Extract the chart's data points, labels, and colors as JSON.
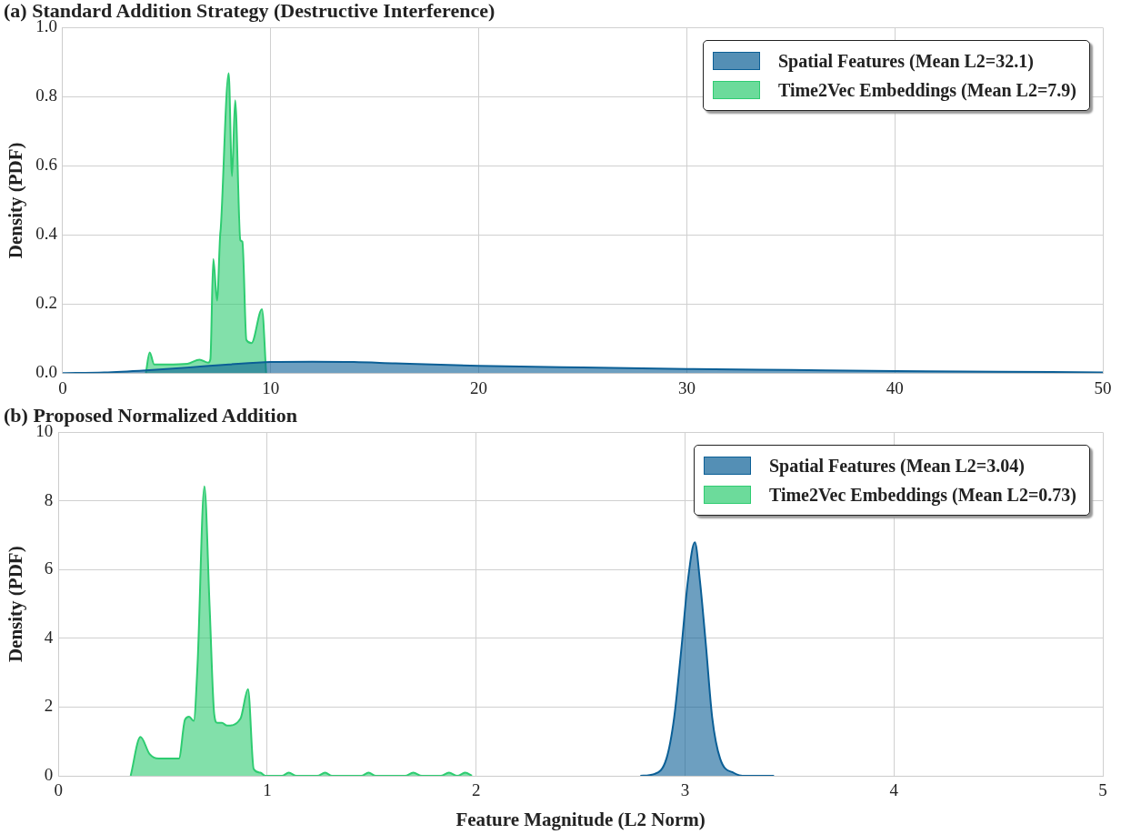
{
  "chart_data": [
    {
      "type": "area",
      "title": "(a) Standard Addition Strategy (Destructive Interference)",
      "ylabel": "Density (PDF)",
      "xlim": [
        0,
        50
      ],
      "xticks": [
        0,
        10,
        20,
        30,
        40,
        50
      ],
      "ylim": [
        0,
        1
      ],
      "yticks": [
        {
          "value": 0,
          "label": "0.0"
        },
        0.2,
        0.4,
        0.6,
        0.8,
        {
          "value": 1,
          "label": "1.0"
        }
      ],
      "grid": true,
      "legend": "top right",
      "series": [
        {
          "name": "Spatial Features (Mean L2=32.1)",
          "color": "#0b5f96",
          "x": [
            0,
            2,
            4,
            6,
            8,
            10,
            12,
            14,
            16,
            20,
            25,
            30,
            35,
            40,
            45,
            50
          ],
          "values": [
            0,
            0.002,
            0.008,
            0.016,
            0.025,
            0.032,
            0.033,
            0.032,
            0.028,
            0.021,
            0.016,
            0.012,
            0.009,
            0.006,
            0.004,
            0.002
          ]
        },
        {
          "name": "Time2Vec Embeddings (Mean L2=7.9)",
          "color": "#2ecc71",
          "x": [
            4.0,
            4.18,
            4.4,
            5.0,
            6.0,
            6.58,
            7.0,
            7.1,
            7.24,
            7.42,
            7.57,
            7.6,
            7.98,
            8.14,
            8.29,
            8.54,
            8.64,
            8.83,
            9.08,
            9.58,
            9.78
          ],
          "values": [
            0,
            0.06,
            0.025,
            0.025,
            0.027,
            0.039,
            0.03,
            0.04,
            0.33,
            0.21,
            0.4,
            0.42,
            0.868,
            0.57,
            0.79,
            0.385,
            0.38,
            0.096,
            0.087,
            0.185,
            0
          ]
        }
      ]
    },
    {
      "type": "area",
      "title": "(b) Proposed Normalized Addition",
      "xlabel": "Feature Magnitude (L2 Norm)",
      "ylabel": "Density (PDF)",
      "xlim": [
        0,
        5
      ],
      "xticks": [
        0,
        1,
        2,
        3,
        4,
        5
      ],
      "ylim": [
        0,
        10
      ],
      "yticks": [
        0,
        2,
        4,
        6,
        8,
        10
      ],
      "grid": true,
      "legend": "top right",
      "series": [
        {
          "name": "Spatial Features (Mean L2=3.04)",
          "color": "#0b5f96",
          "x": [
            2.786,
            2.852,
            2.911,
            2.948,
            2.984,
            3.014,
            3.047,
            3.071,
            3.1,
            3.13,
            3.168,
            3.235,
            3.29,
            3.426
          ],
          "values": [
            0,
            0.05,
            0.5,
            1.7,
            3.8,
            5.7,
            6.8,
            5.7,
            3.8,
            1.7,
            0.5,
            0.08,
            0,
            0
          ]
        },
        {
          "name": "Time2Vec Embeddings (Mean L2=0.73)",
          "color": "#2ecc71",
          "x": [
            0.346,
            0.393,
            0.437,
            0.48,
            0.577,
            0.606,
            0.626,
            0.648,
            0.666,
            0.699,
            0.724,
            0.746,
            0.761,
            0.783,
            0.808,
            0.872,
            0.908,
            0.935,
            0.967,
            0.99,
            1.07,
            1.103,
            1.14,
            1.24,
            1.277,
            1.31,
            1.45,
            1.485,
            1.52,
            1.66,
            1.699,
            1.74,
            1.83,
            1.87,
            1.91,
            1.948,
            1.98
          ],
          "values": [
            0,
            1.13,
            0.63,
            0.5,
            0.5,
            1.63,
            1.72,
            1.6,
            3.2,
            8.43,
            4.93,
            1.8,
            1.54,
            1.54,
            1.46,
            1.67,
            2.52,
            0.2,
            0.09,
            0,
            0,
            0.09,
            0,
            0,
            0.09,
            0,
            0,
            0.09,
            0,
            0,
            0.09,
            0,
            0,
            0.09,
            0,
            0.09,
            0
          ]
        }
      ]
    }
  ]
}
